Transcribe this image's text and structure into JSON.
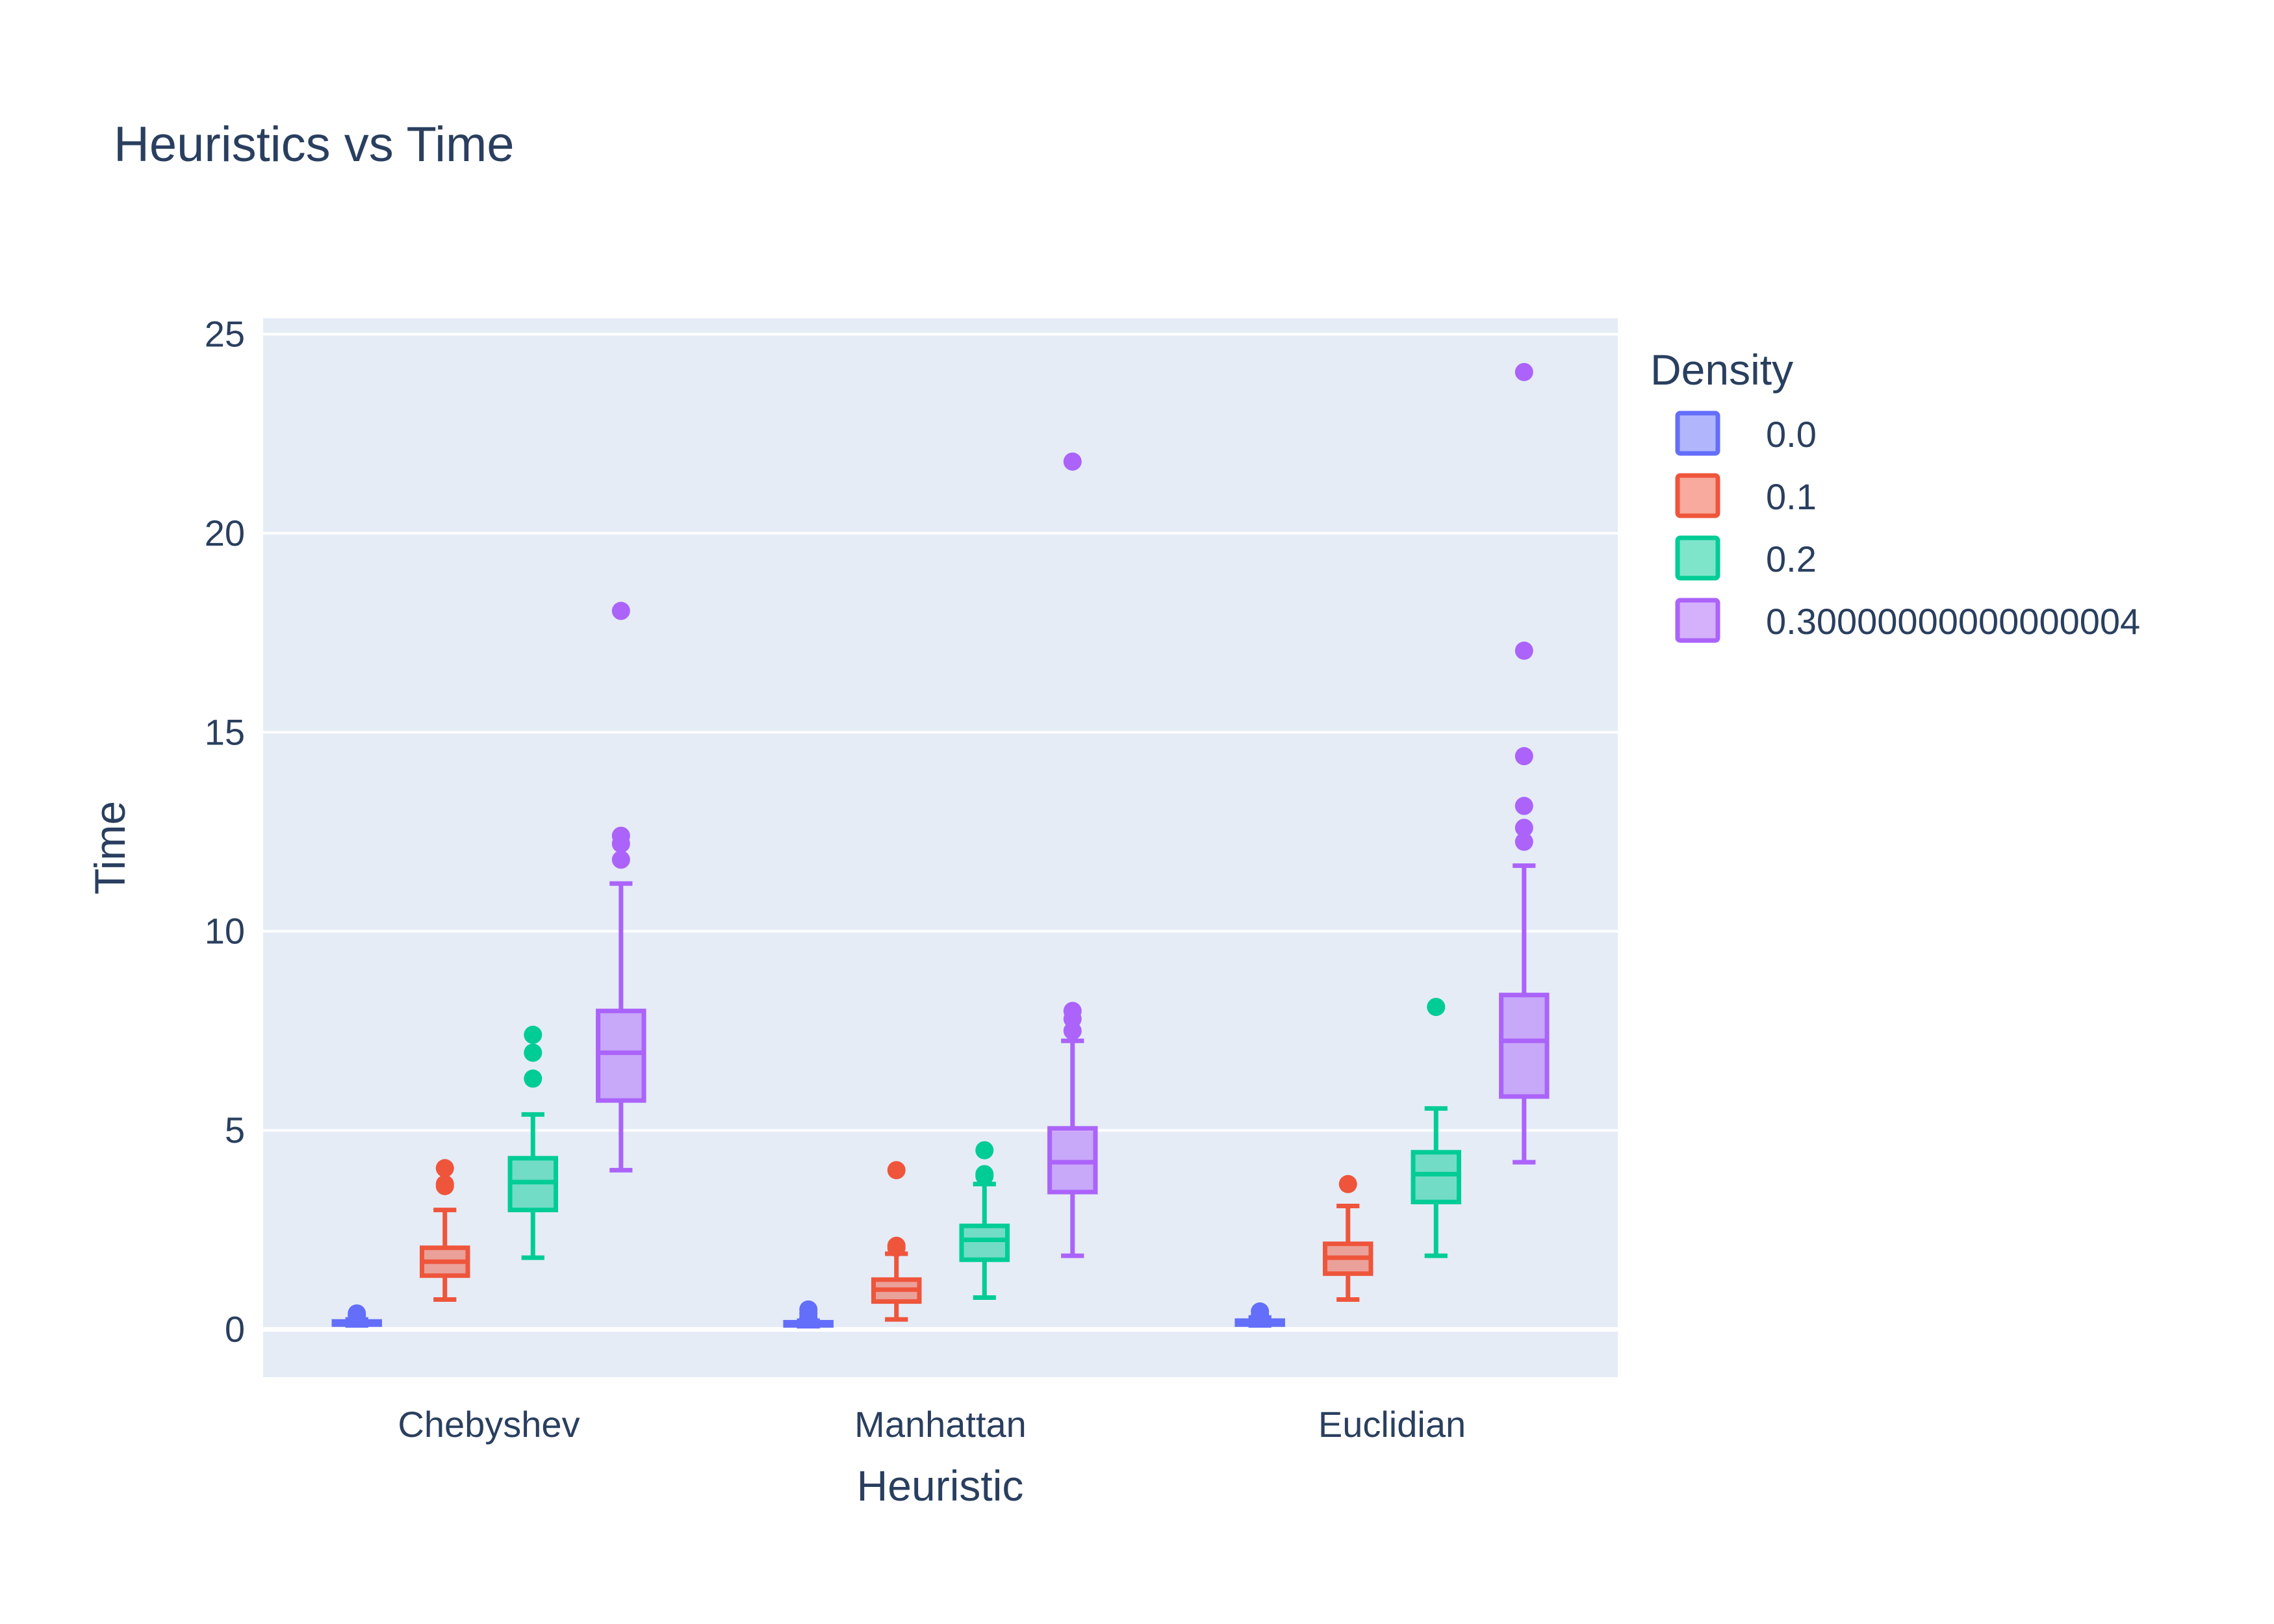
{
  "chart_data": {
    "type": "box",
    "title": "Heuristics vs Time",
    "xlabel": "Heuristic",
    "ylabel": "Time",
    "categories": [
      "Chebyshev",
      "Manhattan",
      "Euclidian"
    ],
    "ylim": [
      -1.2,
      25.4
    ],
    "yticks": [
      0,
      5,
      10,
      15,
      20,
      25
    ],
    "grid": true,
    "legend": {
      "title": "Density",
      "position": "top-right"
    },
    "series": [
      {
        "name": "0.0",
        "color": "#636efa",
        "boxes": [
          {
            "category": "Chebyshev",
            "min": 0.1,
            "q1": 0.12,
            "median": 0.15,
            "q3": 0.2,
            "max": 0.25,
            "outliers": [
              0.35,
              0.4
            ]
          },
          {
            "category": "Manhattan",
            "min": 0.08,
            "q1": 0.1,
            "median": 0.13,
            "q3": 0.18,
            "max": 0.22,
            "outliers": [
              0.3,
              0.4,
              0.5
            ]
          },
          {
            "category": "Euclidian",
            "min": 0.1,
            "q1": 0.12,
            "median": 0.15,
            "q3": 0.22,
            "max": 0.3,
            "outliers": [
              0.35,
              0.45
            ]
          }
        ]
      },
      {
        "name": "0.1",
        "color": "#ef553b",
        "boxes": [
          {
            "category": "Chebyshev",
            "min": 0.75,
            "q1": 1.35,
            "median": 1.7,
            "q3": 2.05,
            "max": 3.0,
            "outliers": [
              3.6,
              3.65,
              4.05
            ]
          },
          {
            "category": "Manhattan",
            "min": 0.25,
            "q1": 0.7,
            "median": 1.0,
            "q3": 1.25,
            "max": 1.9,
            "outliers": [
              2.05,
              2.1,
              4.0
            ]
          },
          {
            "category": "Euclidian",
            "min": 0.75,
            "q1": 1.4,
            "median": 1.8,
            "q3": 2.15,
            "max": 3.1,
            "outliers": [
              3.65
            ]
          }
        ]
      },
      {
        "name": "0.2",
        "color": "#00cc96",
        "boxes": [
          {
            "category": "Chebyshev",
            "min": 1.8,
            "q1": 3.0,
            "median": 3.7,
            "q3": 4.3,
            "max": 5.4,
            "outliers": [
              6.3,
              6.95,
              7.4
            ]
          },
          {
            "category": "Manhattan",
            "min": 0.8,
            "q1": 1.75,
            "median": 2.25,
            "q3": 2.6,
            "max": 3.65,
            "outliers": [
              3.85,
              3.9,
              4.5
            ]
          },
          {
            "category": "Euclidian",
            "min": 1.85,
            "q1": 3.2,
            "median": 3.9,
            "q3": 4.45,
            "max": 5.55,
            "outliers": [
              8.1
            ]
          }
        ]
      },
      {
        "name": "0.30000000000000004",
        "color": "#ab63fa",
        "boxes": [
          {
            "category": "Chebyshev",
            "min": 4.0,
            "q1": 5.75,
            "median": 6.95,
            "q3": 8.0,
            "max": 11.2,
            "outliers": [
              11.8,
              12.2,
              12.4,
              18.05
            ]
          },
          {
            "category": "Manhattan",
            "min": 1.85,
            "q1": 3.45,
            "median": 4.2,
            "q3": 5.05,
            "max": 7.25,
            "outliers": [
              7.5,
              7.8,
              8.0,
              21.8
            ]
          },
          {
            "category": "Euclidian",
            "min": 4.2,
            "q1": 5.85,
            "median": 7.25,
            "q3": 8.4,
            "max": 11.65,
            "outliers": [
              12.25,
              12.6,
              13.15,
              14.4,
              17.05,
              24.05
            ]
          }
        ]
      }
    ]
  }
}
